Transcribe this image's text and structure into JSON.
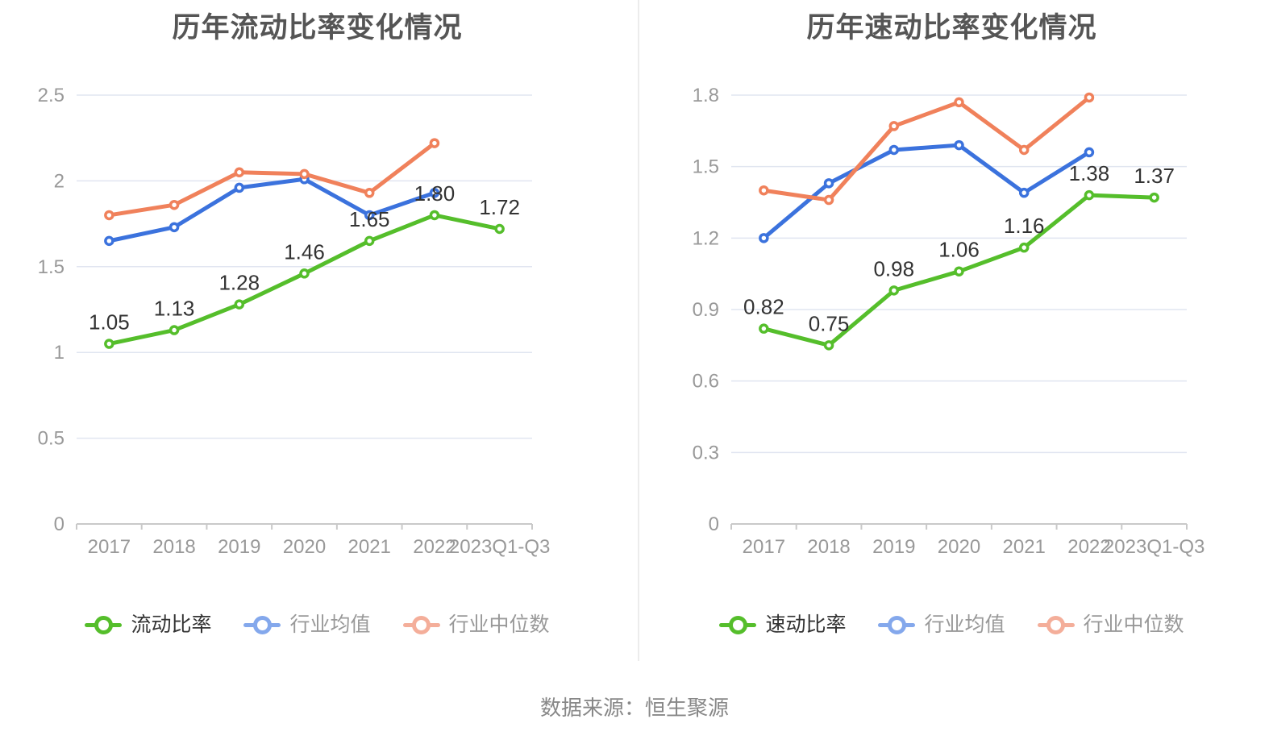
{
  "page": {
    "background": "#FFFFFF",
    "footer": {
      "text": "数据来源：恒生聚源"
    }
  },
  "colors": {
    "series": {
      "green": "#55BE2B",
      "blue": "#3B72DD",
      "orange": "#F0815B"
    },
    "legend": {
      "green": "#55BE2B",
      "blue": "#84A8EC",
      "orange": "#F4AE9A"
    },
    "title": "#555555",
    "axis_text": "#999999",
    "data_label": "#333333",
    "grid": "#E0E5F0",
    "axis_line": "#C9C9C9",
    "legend_text": "#333333",
    "legend_text_muted": "#999999",
    "divider": "#ECECEC",
    "footer_text": "#888888"
  },
  "chart_data": [
    {
      "type": "line",
      "title": "历年流动比率变化情况",
      "categories": [
        "2017",
        "2018",
        "2019",
        "2020",
        "2021",
        "2022",
        "2023Q1-Q3"
      ],
      "y_ticks": [
        "0",
        "0.5",
        "1",
        "1.5",
        "2",
        "2.5"
      ],
      "ylim": [
        0,
        2.5
      ],
      "grid": true,
      "legend_position": "bottom",
      "series": [
        {
          "name": "流动比率",
          "color_key": "green",
          "values": [
            1.05,
            1.13,
            1.28,
            1.46,
            1.65,
            1.8,
            1.72
          ],
          "point_labels": [
            "1.05",
            "1.13",
            "1.28",
            "1.46",
            "1.65",
            "1.80",
            "1.72"
          ],
          "legend_muted": false
        },
        {
          "name": "行业均值",
          "color_key": "blue",
          "values": [
            1.65,
            1.73,
            1.96,
            2.01,
            1.8,
            1.93,
            null
          ],
          "legend_muted": true
        },
        {
          "name": "行业中位数",
          "color_key": "orange",
          "values": [
            1.8,
            1.86,
            2.05,
            2.04,
            1.93,
            2.22,
            null
          ],
          "legend_muted": true
        }
      ]
    },
    {
      "type": "line",
      "title": "历年速动比率变化情况",
      "categories": [
        "2017",
        "2018",
        "2019",
        "2020",
        "2021",
        "2022",
        "2023Q1-Q3"
      ],
      "y_ticks": [
        "0",
        "0.3",
        "0.6",
        "0.9",
        "1.2",
        "1.5",
        "1.8"
      ],
      "ylim": [
        0,
        1.8
      ],
      "grid": true,
      "legend_position": "bottom",
      "series": [
        {
          "name": "速动比率",
          "color_key": "green",
          "values": [
            0.82,
            0.75,
            0.98,
            1.06,
            1.16,
            1.38,
            1.37
          ],
          "point_labels": [
            "0.82",
            "0.75",
            "0.98",
            "1.06",
            "1.16",
            "1.38",
            "1.37"
          ],
          "legend_muted": false
        },
        {
          "name": "行业均值",
          "color_key": "blue",
          "values": [
            1.2,
            1.43,
            1.57,
            1.59,
            1.39,
            1.56,
            null
          ],
          "legend_muted": true
        },
        {
          "name": "行业中位数",
          "color_key": "orange",
          "values": [
            1.4,
            1.36,
            1.67,
            1.77,
            1.57,
            1.79,
            null
          ],
          "legend_muted": true
        }
      ]
    }
  ]
}
